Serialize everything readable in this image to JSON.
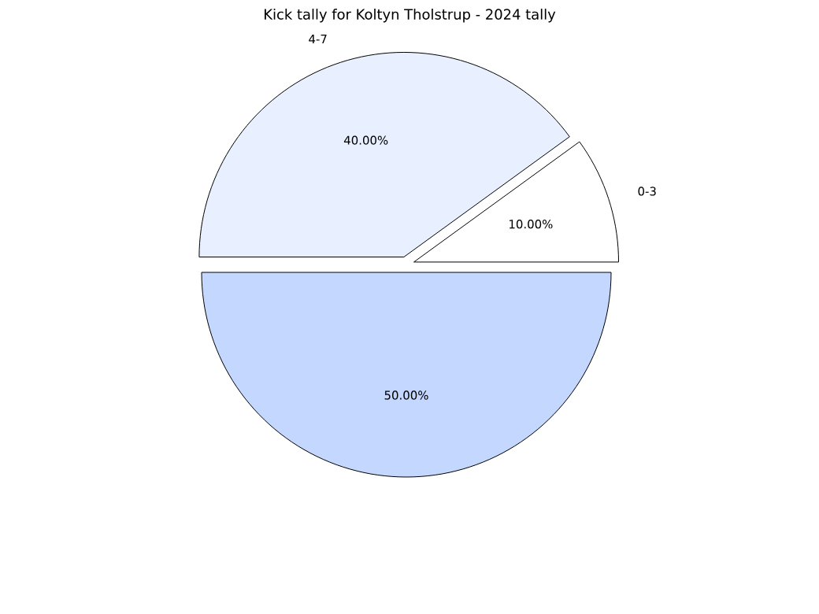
{
  "chart_data": {
    "type": "pie",
    "title": "Kick tally for Koltyn Tholstrup - 2024 tally",
    "categories": [
      "0-3",
      "4-7",
      null
    ],
    "values": [
      10,
      40,
      50
    ],
    "value_labels": [
      "10.00%",
      "40.00%",
      "50.00%"
    ],
    "colors": [
      "#ffffff",
      "#e8f0ff",
      "#c4d8ff"
    ]
  }
}
